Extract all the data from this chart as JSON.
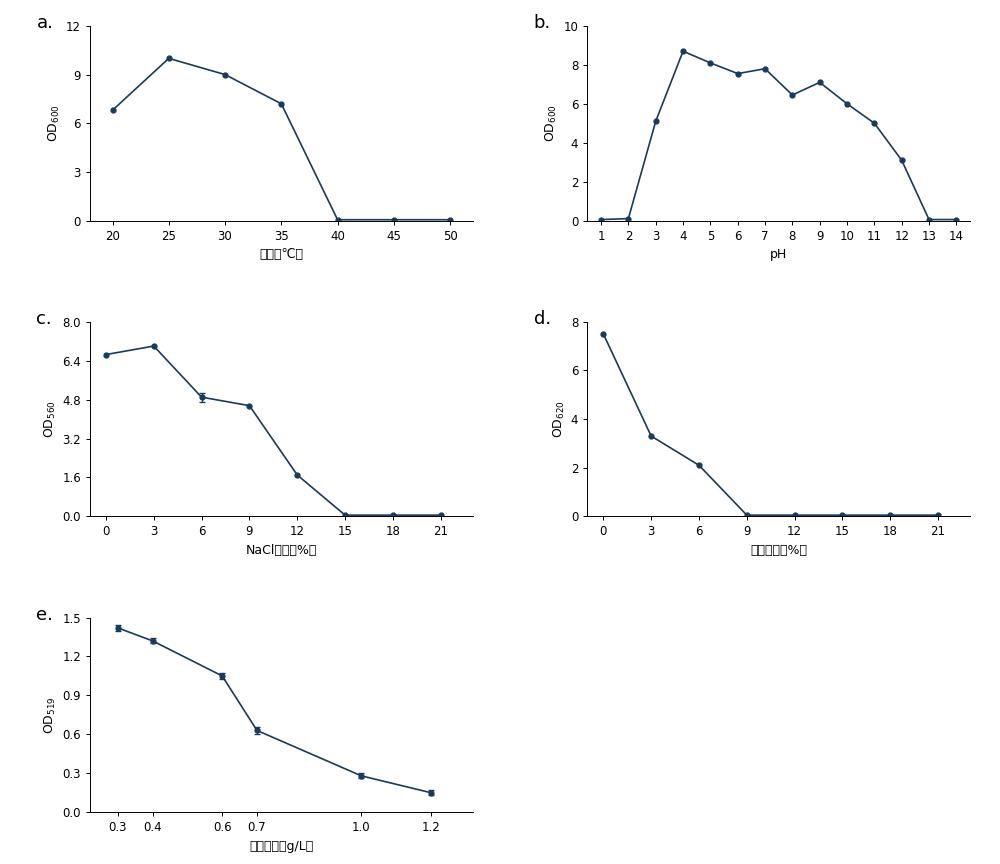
{
  "panel_a": {
    "x": [
      20,
      25,
      30,
      35,
      40,
      45,
      50
    ],
    "y": [
      6.8,
      10.0,
      9.0,
      7.2,
      0.05,
      0.05,
      0.05
    ],
    "xlabel": "温度（℃）",
    "ylabel_base": "OD",
    "ylabel_sub": "600",
    "xlim": [
      18,
      52
    ],
    "ylim": [
      0,
      12
    ],
    "xticks": [
      20,
      25,
      30,
      35,
      40,
      45,
      50
    ],
    "yticks": [
      0,
      3,
      6,
      9,
      12
    ]
  },
  "panel_b": {
    "x": [
      1,
      2,
      3,
      4,
      5,
      6,
      7,
      8,
      9,
      10,
      11,
      12,
      13,
      14
    ],
    "y": [
      0.05,
      0.1,
      5.1,
      8.7,
      8.1,
      7.55,
      7.8,
      6.45,
      7.1,
      6.0,
      5.0,
      3.1,
      0.05,
      0.05
    ],
    "xlabel": "pH",
    "ylabel_base": "OD",
    "ylabel_sub": "600",
    "xlim": [
      0.5,
      14.5
    ],
    "ylim": [
      0,
      10
    ],
    "xticks": [
      1,
      2,
      3,
      4,
      5,
      6,
      7,
      8,
      9,
      10,
      11,
      12,
      13,
      14
    ],
    "yticks": [
      0,
      2,
      4,
      6,
      8,
      10
    ]
  },
  "panel_c": {
    "x": [
      0,
      3,
      6,
      9,
      12,
      15,
      18,
      21
    ],
    "y": [
      6.65,
      7.0,
      4.9,
      4.55,
      1.7,
      0.05,
      0.05,
      0.05
    ],
    "errorbar_idx": 2,
    "errorbar_val": 0.18,
    "xlabel": "NaCl浓度（%）",
    "ylabel_base": "OD",
    "ylabel_sub": "560",
    "xlim": [
      -1,
      23
    ],
    "ylim": [
      0,
      8
    ],
    "xticks": [
      0,
      3,
      6,
      9,
      12,
      15,
      18,
      21
    ],
    "yticks": [
      0,
      1.6,
      3.2,
      4.8,
      6.4,
      8.0
    ]
  },
  "panel_d": {
    "x": [
      0,
      3,
      6,
      9,
      12,
      15,
      18,
      21
    ],
    "y": [
      7.5,
      3.3,
      2.1,
      0.05,
      0.05,
      0.05,
      0.05,
      0.05
    ],
    "xlabel": "乙醇浓度（%）",
    "ylabel_base": "OD",
    "ylabel_sub": "620",
    "xlim": [
      -1,
      23
    ],
    "ylim": [
      0,
      8
    ],
    "xticks": [
      0,
      3,
      6,
      9,
      12,
      15,
      18,
      21
    ],
    "yticks": [
      0,
      2,
      4,
      6,
      8
    ]
  },
  "panel_e": {
    "x": [
      0.3,
      0.4,
      0.6,
      0.7,
      1.0,
      1.2
    ],
    "y": [
      1.42,
      1.32,
      1.05,
      0.63,
      0.28,
      0.15
    ],
    "yerr": [
      0.02,
      0.02,
      0.02,
      0.03,
      0.02,
      0.02
    ],
    "xlabel": "烟碱浓度（g/L）",
    "ylabel_base": "OD",
    "ylabel_sub": "519",
    "xlim": [
      0.22,
      1.32
    ],
    "ylim": [
      0,
      1.5
    ],
    "xticks": [
      0.3,
      0.4,
      0.6,
      0.7,
      1.0,
      1.2
    ],
    "yticks": [
      0,
      0.3,
      0.6,
      0.9,
      1.2,
      1.5
    ]
  },
  "line_color": "#1a3a5c",
  "marker_size": 3.5,
  "line_width": 1.2,
  "panel_label_fontsize": 13,
  "axis_label_fontsize": 9,
  "tick_fontsize": 8.5,
  "ylabel_fontsize": 9
}
